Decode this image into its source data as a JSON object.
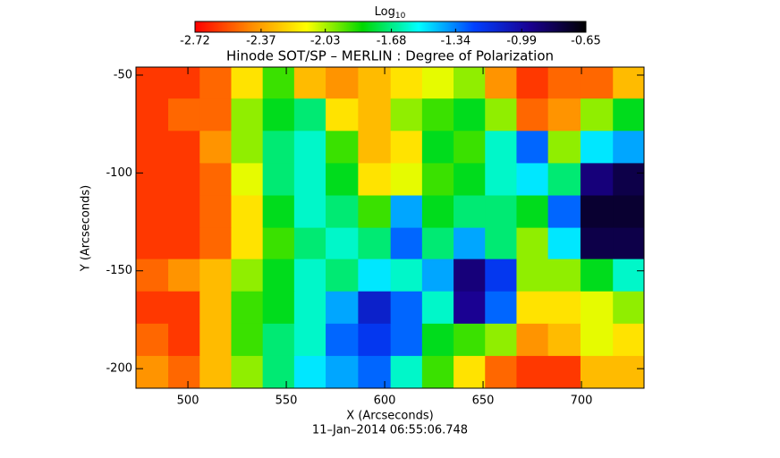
{
  "chart_data": {
    "type": "heatmap",
    "title": "Hinode SOT/SP – MERLIN : Degree of Polarization",
    "footer": "11–Jan–2014 06:55:06.748",
    "x_label": "X (Arcseconds)",
    "y_label": "Y (Arcseconds)",
    "colorbar_label": "Log",
    "colorbar_label_sub": "10",
    "xlim": [
      473.6,
      731.8
    ],
    "ylim": [
      -210,
      -45.9
    ],
    "xticks": [
      500,
      550,
      600,
      650,
      700
    ],
    "yticks": [
      -50,
      -100,
      -150,
      -200
    ],
    "zlim": [
      -2.72,
      -0.65
    ],
    "zticks": [
      -2.72,
      -2.37,
      -2.03,
      -1.68,
      -1.34,
      -0.99,
      -0.65
    ],
    "colorscale": [
      "#ff0000",
      "#ff8a00",
      "#ffff00",
      "#00d800",
      "#00ffff",
      "#0040ff",
      "#1a0090",
      "#000000"
    ],
    "x": [
      482,
      498,
      514,
      530,
      546,
      562,
      578,
      595,
      611,
      627,
      643,
      659,
      675,
      691,
      708,
      724
    ],
    "y": [
      -54,
      -70,
      -87,
      -103,
      -120,
      -136,
      -152,
      -169,
      -185,
      -202
    ],
    "z": [
      [
        -2.6,
        -2.6,
        -2.5,
        -2.2,
        -1.9,
        -2.3,
        -2.4,
        -2.3,
        -2.2,
        -2.1,
        -2.0,
        -2.4,
        -2.6,
        -2.5,
        -2.5,
        -2.3
      ],
      [
        -2.6,
        -2.5,
        -2.5,
        -2.0,
        -1.8,
        -1.7,
        -2.2,
        -2.3,
        -2.0,
        -1.9,
        -1.8,
        -2.0,
        -2.5,
        -2.4,
        -2.0,
        -1.8
      ],
      [
        -2.6,
        -2.6,
        -2.4,
        -2.0,
        -1.7,
        -1.6,
        -1.9,
        -2.3,
        -2.2,
        -1.8,
        -1.9,
        -1.6,
        -1.3,
        -2.0,
        -1.5,
        -1.4
      ],
      [
        -2.6,
        -2.6,
        -2.5,
        -2.1,
        -1.7,
        -1.6,
        -1.8,
        -2.2,
        -2.1,
        -1.9,
        -1.8,
        -1.6,
        -1.5,
        -1.7,
        -0.9,
        -0.8
      ],
      [
        -2.6,
        -2.6,
        -2.5,
        -2.2,
        -1.8,
        -1.6,
        -1.7,
        -1.9,
        -1.4,
        -1.8,
        -1.7,
        -1.7,
        -1.8,
        -1.3,
        -0.75,
        -0.75
      ],
      [
        -2.6,
        -2.6,
        -2.5,
        -2.2,
        -1.9,
        -1.7,
        -1.6,
        -1.7,
        -1.3,
        -1.7,
        -1.4,
        -1.7,
        -2.0,
        -1.5,
        -0.8,
        -0.8
      ],
      [
        -2.5,
        -2.4,
        -2.3,
        -2.0,
        -1.8,
        -1.6,
        -1.7,
        -1.5,
        -1.6,
        -1.4,
        -0.9,
        -1.2,
        -2.0,
        -2.0,
        -1.8,
        -1.6
      ],
      [
        -2.6,
        -2.6,
        -2.3,
        -1.9,
        -1.8,
        -1.6,
        -1.4,
        -1.1,
        -1.3,
        -1.6,
        -0.95,
        -1.3,
        -2.2,
        -2.2,
        -2.1,
        -2.0
      ],
      [
        -2.5,
        -2.6,
        -2.3,
        -1.9,
        -1.7,
        -1.6,
        -1.3,
        -1.2,
        -1.3,
        -1.8,
        -1.9,
        -2.0,
        -2.4,
        -2.3,
        -2.1,
        -2.2
      ],
      [
        -2.4,
        -2.5,
        -2.3,
        -2.0,
        -1.7,
        -1.5,
        -1.4,
        -1.3,
        -1.6,
        -1.9,
        -2.2,
        -2.5,
        -2.6,
        -2.6,
        -2.3,
        -2.3
      ]
    ]
  }
}
